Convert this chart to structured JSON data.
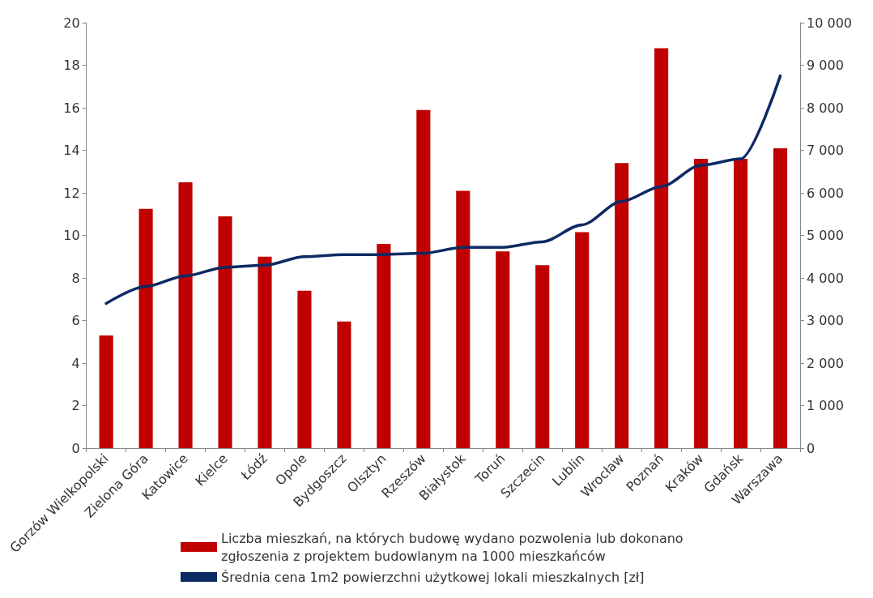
{
  "chart_data": {
    "type": "bar",
    "categories": [
      "Gorzów Wielkopolski",
      "Zielona Góra",
      "Katowice",
      "Kielce",
      "Łódź",
      "Opole",
      "Bydgoszcz",
      "Olsztyn",
      "Rzeszów",
      "Białystok",
      "Toruń",
      "Szczecin",
      "Lublin",
      "Wrocław",
      "Poznań",
      "Kraków",
      "Gdańsk",
      "Warszawa"
    ],
    "series": [
      {
        "name": "Liczba mieszkań, na których budowę wydano pozwolenia lub dokonano zgłoszenia z projektem budowlanym na 1000 mieszkańców",
        "color": "#c00000",
        "values": [
          5.3,
          11.25,
          12.5,
          10.9,
          9.0,
          7.4,
          5.95,
          9.6,
          15.9,
          12.1,
          9.25,
          8.6,
          10.15,
          13.4,
          18.8,
          13.6,
          13.6,
          14.1
        ]
      },
      {
        "name": "Średnia cena 1m2 powierzchni użytkowej lokali mieszkalnych [zł]",
        "type": "line",
        "axis": "y2",
        "color": "#0d2a63",
        "values": [
          3400,
          3800,
          4050,
          4250,
          4300,
          4500,
          4550,
          4550,
          4580,
          4720,
          4720,
          4850,
          5250,
          5800,
          6150,
          6650,
          6800,
          8750
        ]
      }
    ],
    "ylim": [
      0,
      20
    ],
    "yticks": [
      0,
      2,
      4,
      6,
      8,
      10,
      12,
      14,
      16,
      18,
      20
    ],
    "y2lim": [
      0,
      10000
    ],
    "y2ticks": [
      0,
      {
        "value": 1000,
        "label": "1 000"
      },
      {
        "value": 2000,
        "label": "2 000"
      },
      {
        "value": 3000,
        "label": "3 000"
      },
      {
        "value": 4000,
        "label": "4 000"
      },
      {
        "value": 5000,
        "label": "5 000"
      },
      {
        "value": 6000,
        "label": "6 000"
      },
      {
        "value": 7000,
        "label": "7 000"
      },
      {
        "value": 8000,
        "label": "8 000"
      },
      {
        "value": 9000,
        "label": "9 000"
      },
      {
        "value": 10000,
        "label": "10 000"
      }
    ],
    "legend": "bottom",
    "marker": "none",
    "line_style": "solid"
  }
}
